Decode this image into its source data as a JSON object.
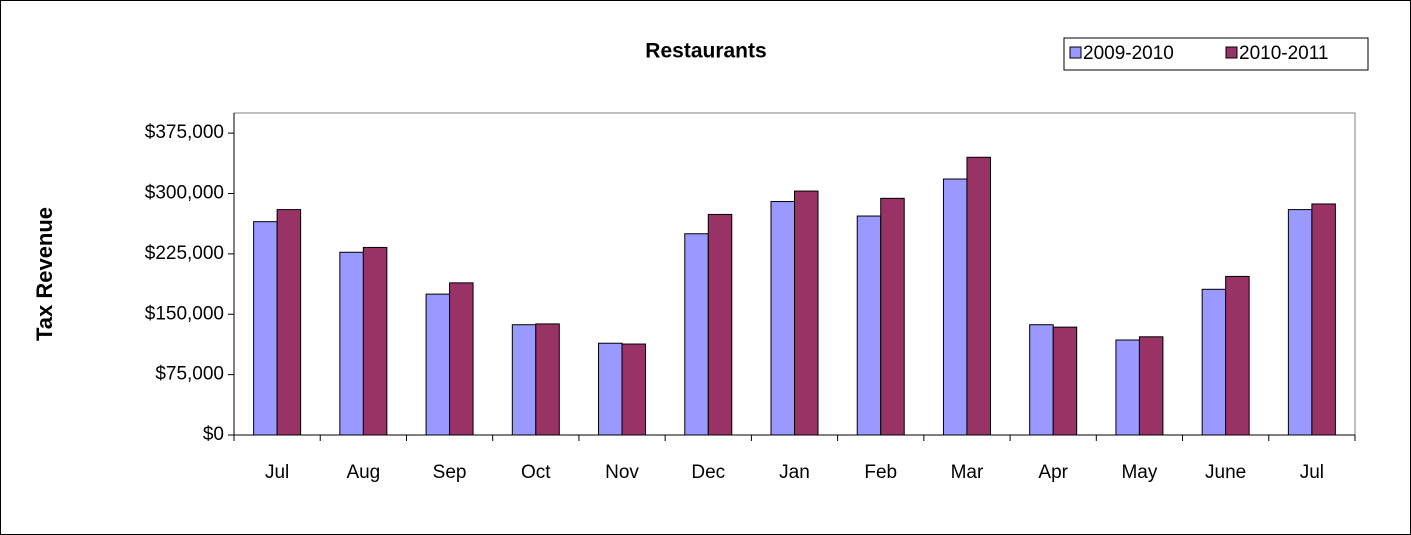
{
  "chart_data": {
    "type": "bar",
    "title": "Restaurants",
    "ylabel": "Tax Revenue",
    "categories": [
      "Jul",
      "Aug",
      "Sep",
      "Oct",
      "Nov",
      "Dec",
      "Jan",
      "Feb",
      "Mar",
      "Apr",
      "May",
      "June",
      "Jul"
    ],
    "series": [
      {
        "name": "2009-2010",
        "color": "#9999ff",
        "values": [
          265000,
          227000,
          175000,
          137000,
          114000,
          250000,
          290000,
          272000,
          318000,
          137000,
          118000,
          181000,
          280000
        ]
      },
      {
        "name": "2010-2011",
        "color": "#993366",
        "values": [
          280000,
          233000,
          189000,
          138000,
          113000,
          274000,
          303000,
          294000,
          345000,
          134000,
          122000,
          197000,
          287000
        ]
      }
    ],
    "ylim": [
      0,
      400000
    ],
    "yticks": [
      {
        "value": 0,
        "label": "$0"
      },
      {
        "value": 75000,
        "label": "$75,000"
      },
      {
        "value": 150000,
        "label": "$150,000"
      },
      {
        "value": 225000,
        "label": "$225,000"
      },
      {
        "value": 300000,
        "label": "$300,000"
      },
      {
        "value": 375000,
        "label": "$375,000"
      }
    ],
    "grid": false,
    "legend": "top-right"
  }
}
